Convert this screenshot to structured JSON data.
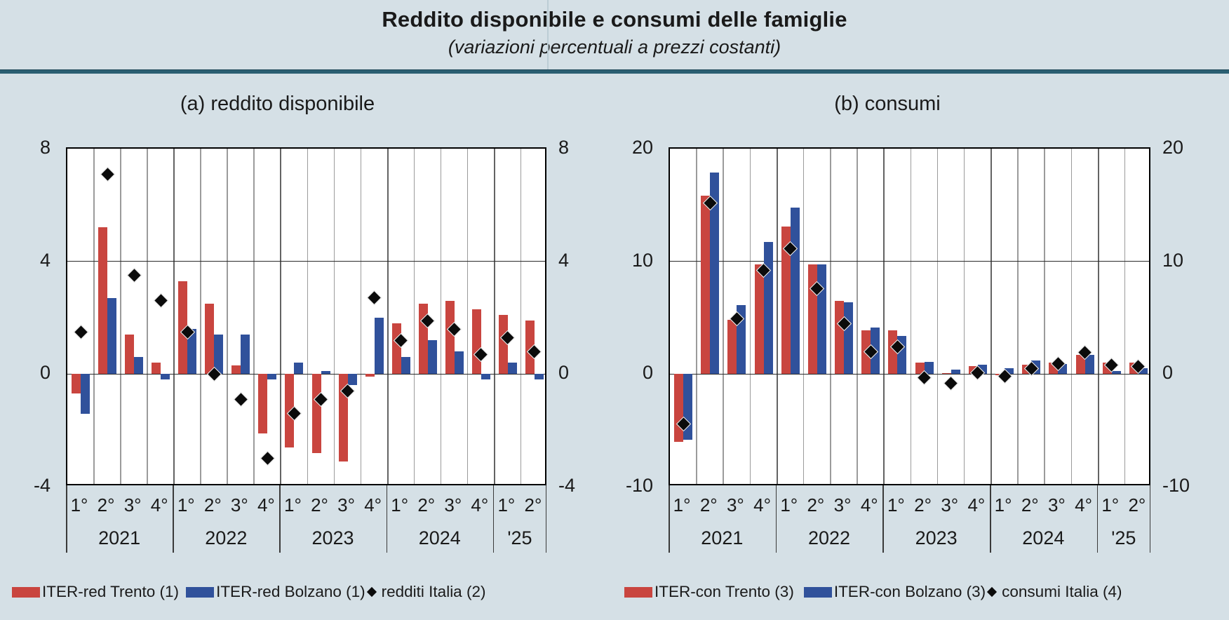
{
  "header": {
    "title": "Reddito disponibile e consumi delle famiglie",
    "subtitle": "(variazioni percentuali a prezzi costanti)"
  },
  "colors": {
    "trento_red": "#c9453f",
    "bolzano_blue": "#30519b",
    "italia_black": "#0b0b0b",
    "background": "#d5e0e6",
    "plot_background": "#ffffff",
    "teal_rule": "#2b5f72",
    "gridline_gray": "#9b9b9b"
  },
  "chart_data": [
    {
      "type": "bar",
      "panel_title": "(a) reddito disponibile",
      "ylim": [
        -4,
        8
      ],
      "yticks": [
        8,
        4,
        0,
        -4
      ],
      "gridlines": [
        4,
        0
      ],
      "grid": "on",
      "legend_position": "bottom",
      "x_quarters": [
        "1°",
        "2°",
        "3°",
        "4°",
        "1°",
        "2°",
        "3°",
        "4°",
        "1°",
        "2°",
        "3°",
        "4°",
        "1°",
        "2°",
        "3°",
        "4°",
        "1°",
        "2°"
      ],
      "x_years": [
        {
          "label": "2021",
          "quarters": 4
        },
        {
          "label": "2022",
          "quarters": 4
        },
        {
          "label": "2023",
          "quarters": 4
        },
        {
          "label": "2024",
          "quarters": 4
        },
        {
          "label": "'25",
          "quarters": 2
        }
      ],
      "series": [
        {
          "name": "ITER-red Trento (1)",
          "color_key": "trento_red",
          "values": [
            -0.7,
            5.2,
            1.4,
            0.4,
            3.3,
            2.5,
            0.3,
            -2.1,
            -2.6,
            -2.8,
            -3.1,
            -0.1,
            1.8,
            2.5,
            2.6,
            2.3,
            2.1,
            1.9
          ]
        },
        {
          "name": "ITER-red Bolzano (1)",
          "color_key": "bolzano_blue",
          "values": [
            -1.4,
            2.7,
            0.6,
            -0.2,
            1.6,
            1.4,
            1.4,
            -0.2,
            0.4,
            0.1,
            -0.4,
            2.0,
            0.6,
            1.2,
            0.8,
            -0.2,
            0.4,
            -0.2
          ]
        }
      ],
      "markers": {
        "name": "redditi Italia (2)",
        "shape": "diamond",
        "values": [
          1.5,
          7.1,
          3.5,
          2.6,
          1.5,
          0.0,
          -0.9,
          -3.0,
          -1.4,
          -0.9,
          -0.6,
          2.7,
          1.2,
          1.9,
          1.6,
          0.7,
          1.3,
          0.8
        ]
      }
    },
    {
      "type": "bar",
      "panel_title": "(b) consumi",
      "ylim": [
        -10,
        20
      ],
      "yticks": [
        20,
        10,
        0,
        -10
      ],
      "gridlines": [
        10,
        0
      ],
      "grid": "on",
      "legend_position": "bottom",
      "x_quarters": [
        "1°",
        "2°",
        "3°",
        "4°",
        "1°",
        "2°",
        "3°",
        "4°",
        "1°",
        "2°",
        "3°",
        "4°",
        "1°",
        "2°",
        "3°",
        "4°",
        "1°",
        "2°"
      ],
      "x_years": [
        {
          "label": "2021",
          "quarters": 4
        },
        {
          "label": "2022",
          "quarters": 4
        },
        {
          "label": "2023",
          "quarters": 4
        },
        {
          "label": "2024",
          "quarters": 4
        },
        {
          "label": "'25",
          "quarters": 2
        }
      ],
      "series": [
        {
          "name": "ITER-con Trento (3)",
          "color_key": "trento_red",
          "values": [
            -6.0,
            15.8,
            4.8,
            9.7,
            13.1,
            9.7,
            6.5,
            3.9,
            3.9,
            1.0,
            0.1,
            0.7,
            -0.1,
            0.8,
            1.0,
            1.7,
            1.0,
            1.0
          ]
        },
        {
          "name": "ITER-con Bolzano (3)",
          "color_key": "bolzano_blue",
          "values": [
            -5.8,
            17.9,
            6.1,
            11.7,
            14.8,
            9.7,
            6.4,
            4.1,
            3.4,
            1.1,
            0.4,
            0.8,
            0.5,
            1.2,
            0.9,
            1.7,
            0.3,
            0.5
          ]
        }
      ],
      "markers": {
        "name": "consumi Italia (4)",
        "shape": "diamond",
        "values": [
          -4.4,
          15.2,
          4.9,
          9.2,
          11.1,
          7.6,
          4.5,
          2.0,
          2.4,
          -0.3,
          -0.8,
          0.1,
          -0.2,
          0.5,
          0.9,
          1.9,
          0.8,
          0.7
        ]
      }
    }
  ]
}
